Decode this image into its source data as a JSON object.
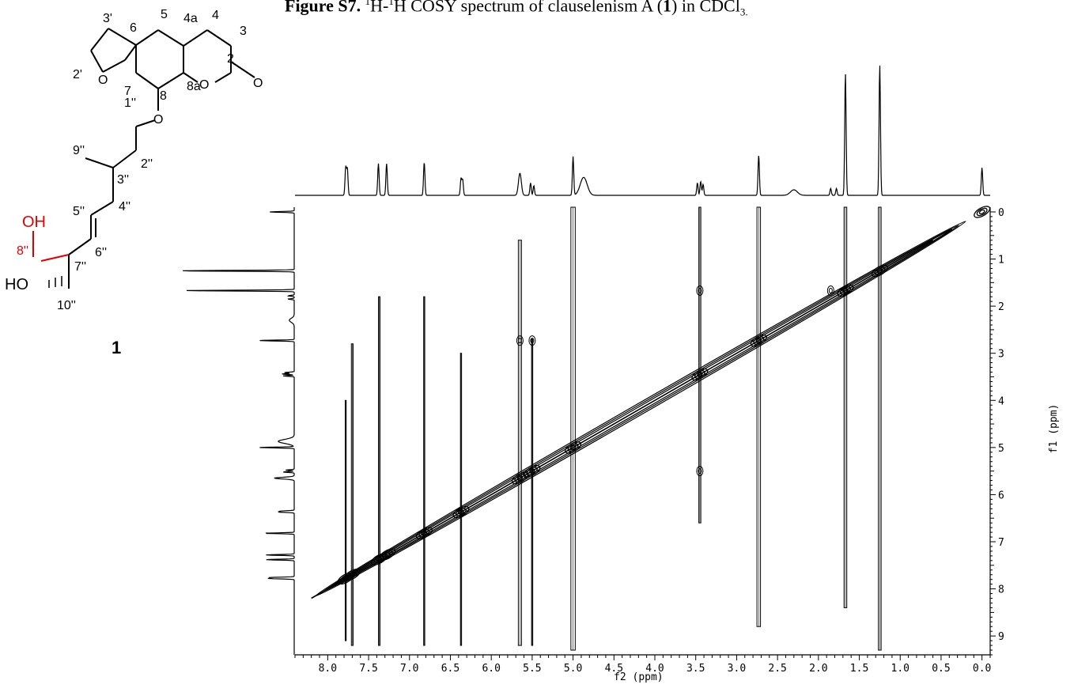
{
  "caption": {
    "label": "Figure S7.",
    "t1": " ",
    "sup1": "1",
    "t2": "H-",
    "sup2": "1",
    "t3": "H COSY spectrum of clauselenism A (",
    "bold": "1",
    "t4": ") in CDCl",
    "sub": "3."
  },
  "structure": {
    "atoms": [
      "3'",
      "5",
      "4a",
      "4",
      "3",
      "6",
      "2'",
      "2",
      "O",
      "7",
      "8",
      "8a",
      "O",
      "O",
      "O",
      "1''",
      "9''",
      "2''",
      "3''",
      "4''",
      "5''",
      "6''",
      "OH",
      "8''",
      "HO",
      "7''",
      "10''"
    ],
    "compound_label": "1",
    "highlight_color": "#e00000"
  },
  "chart_data": {
    "type": "heatmap",
    "title": "",
    "xlabel": "f2 (ppm)",
    "ylabel": "f1 (ppm)",
    "xlim": [
      8.4,
      -0.1
    ],
    "ylim": [
      -0.1,
      9.4
    ],
    "x_ticks": [
      "8.0",
      "7.5",
      "7.0",
      "6.5",
      "6.0",
      "5.5",
      "5.0",
      "4.5",
      "4.0",
      "3.5",
      "3.0",
      "2.5",
      "2.0",
      "1.5",
      "1.0",
      "0.5",
      "0.0"
    ],
    "y_ticks": [
      "0",
      "1",
      "2",
      "3",
      "4",
      "5",
      "6",
      "7",
      "8",
      "9"
    ],
    "diagonal_peaks_ppm": [
      7.78,
      7.7,
      7.37,
      7.27,
      6.82,
      6.37,
      5.65,
      5.5,
      5.0,
      3.45,
      2.73,
      1.67,
      1.25,
      0.0
    ],
    "cross_peaks": [
      {
        "x": 5.65,
        "y": 2.73
      },
      {
        "x": 5.5,
        "y": 2.73
      },
      {
        "x": 3.45,
        "y": 1.67
      },
      {
        "x": 3.45,
        "y": 5.5
      },
      {
        "x": 1.85,
        "y": 1.67
      }
    ],
    "projection_peaks": [
      {
        "ppm": 7.78,
        "height": 0.2
      },
      {
        "ppm": 7.76,
        "height": 0.19
      },
      {
        "ppm": 7.38,
        "height": 0.23
      },
      {
        "ppm": 7.28,
        "height": 0.23
      },
      {
        "ppm": 6.82,
        "height": 0.24
      },
      {
        "ppm": 6.37,
        "height": 0.12
      },
      {
        "ppm": 6.35,
        "height": 0.11
      },
      {
        "ppm": 5.65,
        "height": 0.16
      },
      {
        "ppm": 5.52,
        "height": 0.09
      },
      {
        "ppm": 5.48,
        "height": 0.07
      },
      {
        "ppm": 5.0,
        "height": 0.28
      },
      {
        "ppm": 4.87,
        "height": 0.13
      },
      {
        "ppm": 3.48,
        "height": 0.09
      },
      {
        "ppm": 3.44,
        "height": 0.1
      },
      {
        "ppm": 3.41,
        "height": 0.08
      },
      {
        "ppm": 2.73,
        "height": 0.29
      },
      {
        "ppm": 2.3,
        "height": 0.04
      },
      {
        "ppm": 1.85,
        "height": 0.05
      },
      {
        "ppm": 1.78,
        "height": 0.05
      },
      {
        "ppm": 1.67,
        "height": 0.88
      },
      {
        "ppm": 1.25,
        "height": 0.94
      },
      {
        "ppm": 0.0,
        "height": 0.2
      }
    ],
    "grid": false,
    "contour_color": "#000000"
  }
}
